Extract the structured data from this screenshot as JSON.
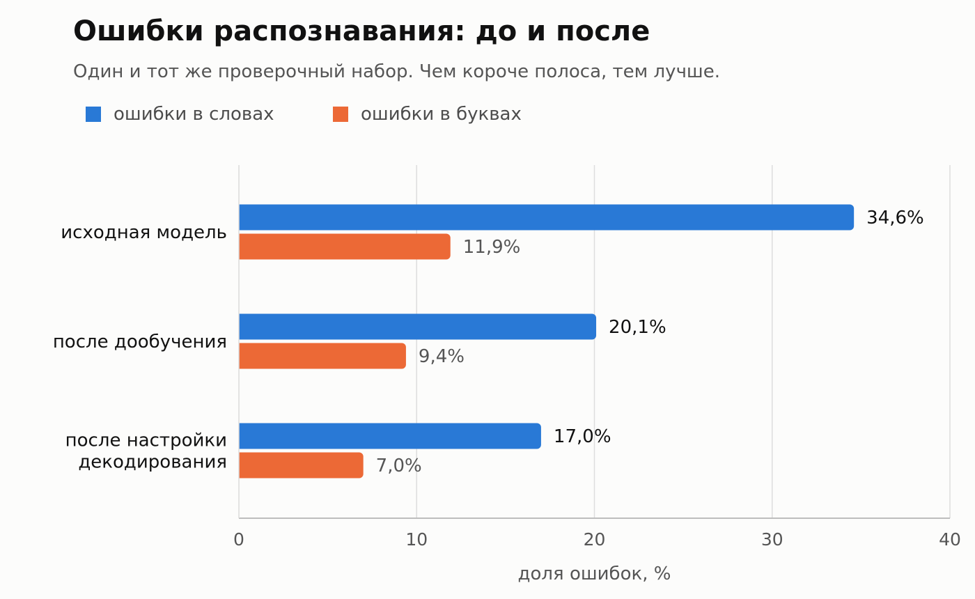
{
  "chart_data": {
    "type": "bar",
    "orientation": "horizontal",
    "title": "Ошибки распознавания: до и после",
    "subtitle": "Один и тот же проверочный набор. Чем короче полоса, тем лучше.",
    "categories": [
      [
        "исходная модель"
      ],
      [
        "после дообучения"
      ],
      [
        "после настройки",
        "декодирования"
      ]
    ],
    "series": [
      {
        "name": "ошибки в словах",
        "color": "#2979d6",
        "values": [
          34.6,
          20.1,
          17.0
        ],
        "labels": [
          "34,6%",
          "20,1%",
          "17,0%"
        ]
      },
      {
        "name": "ошибки в буквах",
        "color": "#ec6936",
        "values": [
          11.9,
          9.4,
          7.0
        ],
        "labels": [
          "11,9%",
          "9,4%",
          "7,0%"
        ]
      }
    ],
    "xlabel": "доля ошибок, %",
    "xlim": [
      0,
      40
    ],
    "xticks": [
      0,
      10,
      20,
      30,
      40
    ],
    "grid": true,
    "legend_position": "top-left"
  }
}
